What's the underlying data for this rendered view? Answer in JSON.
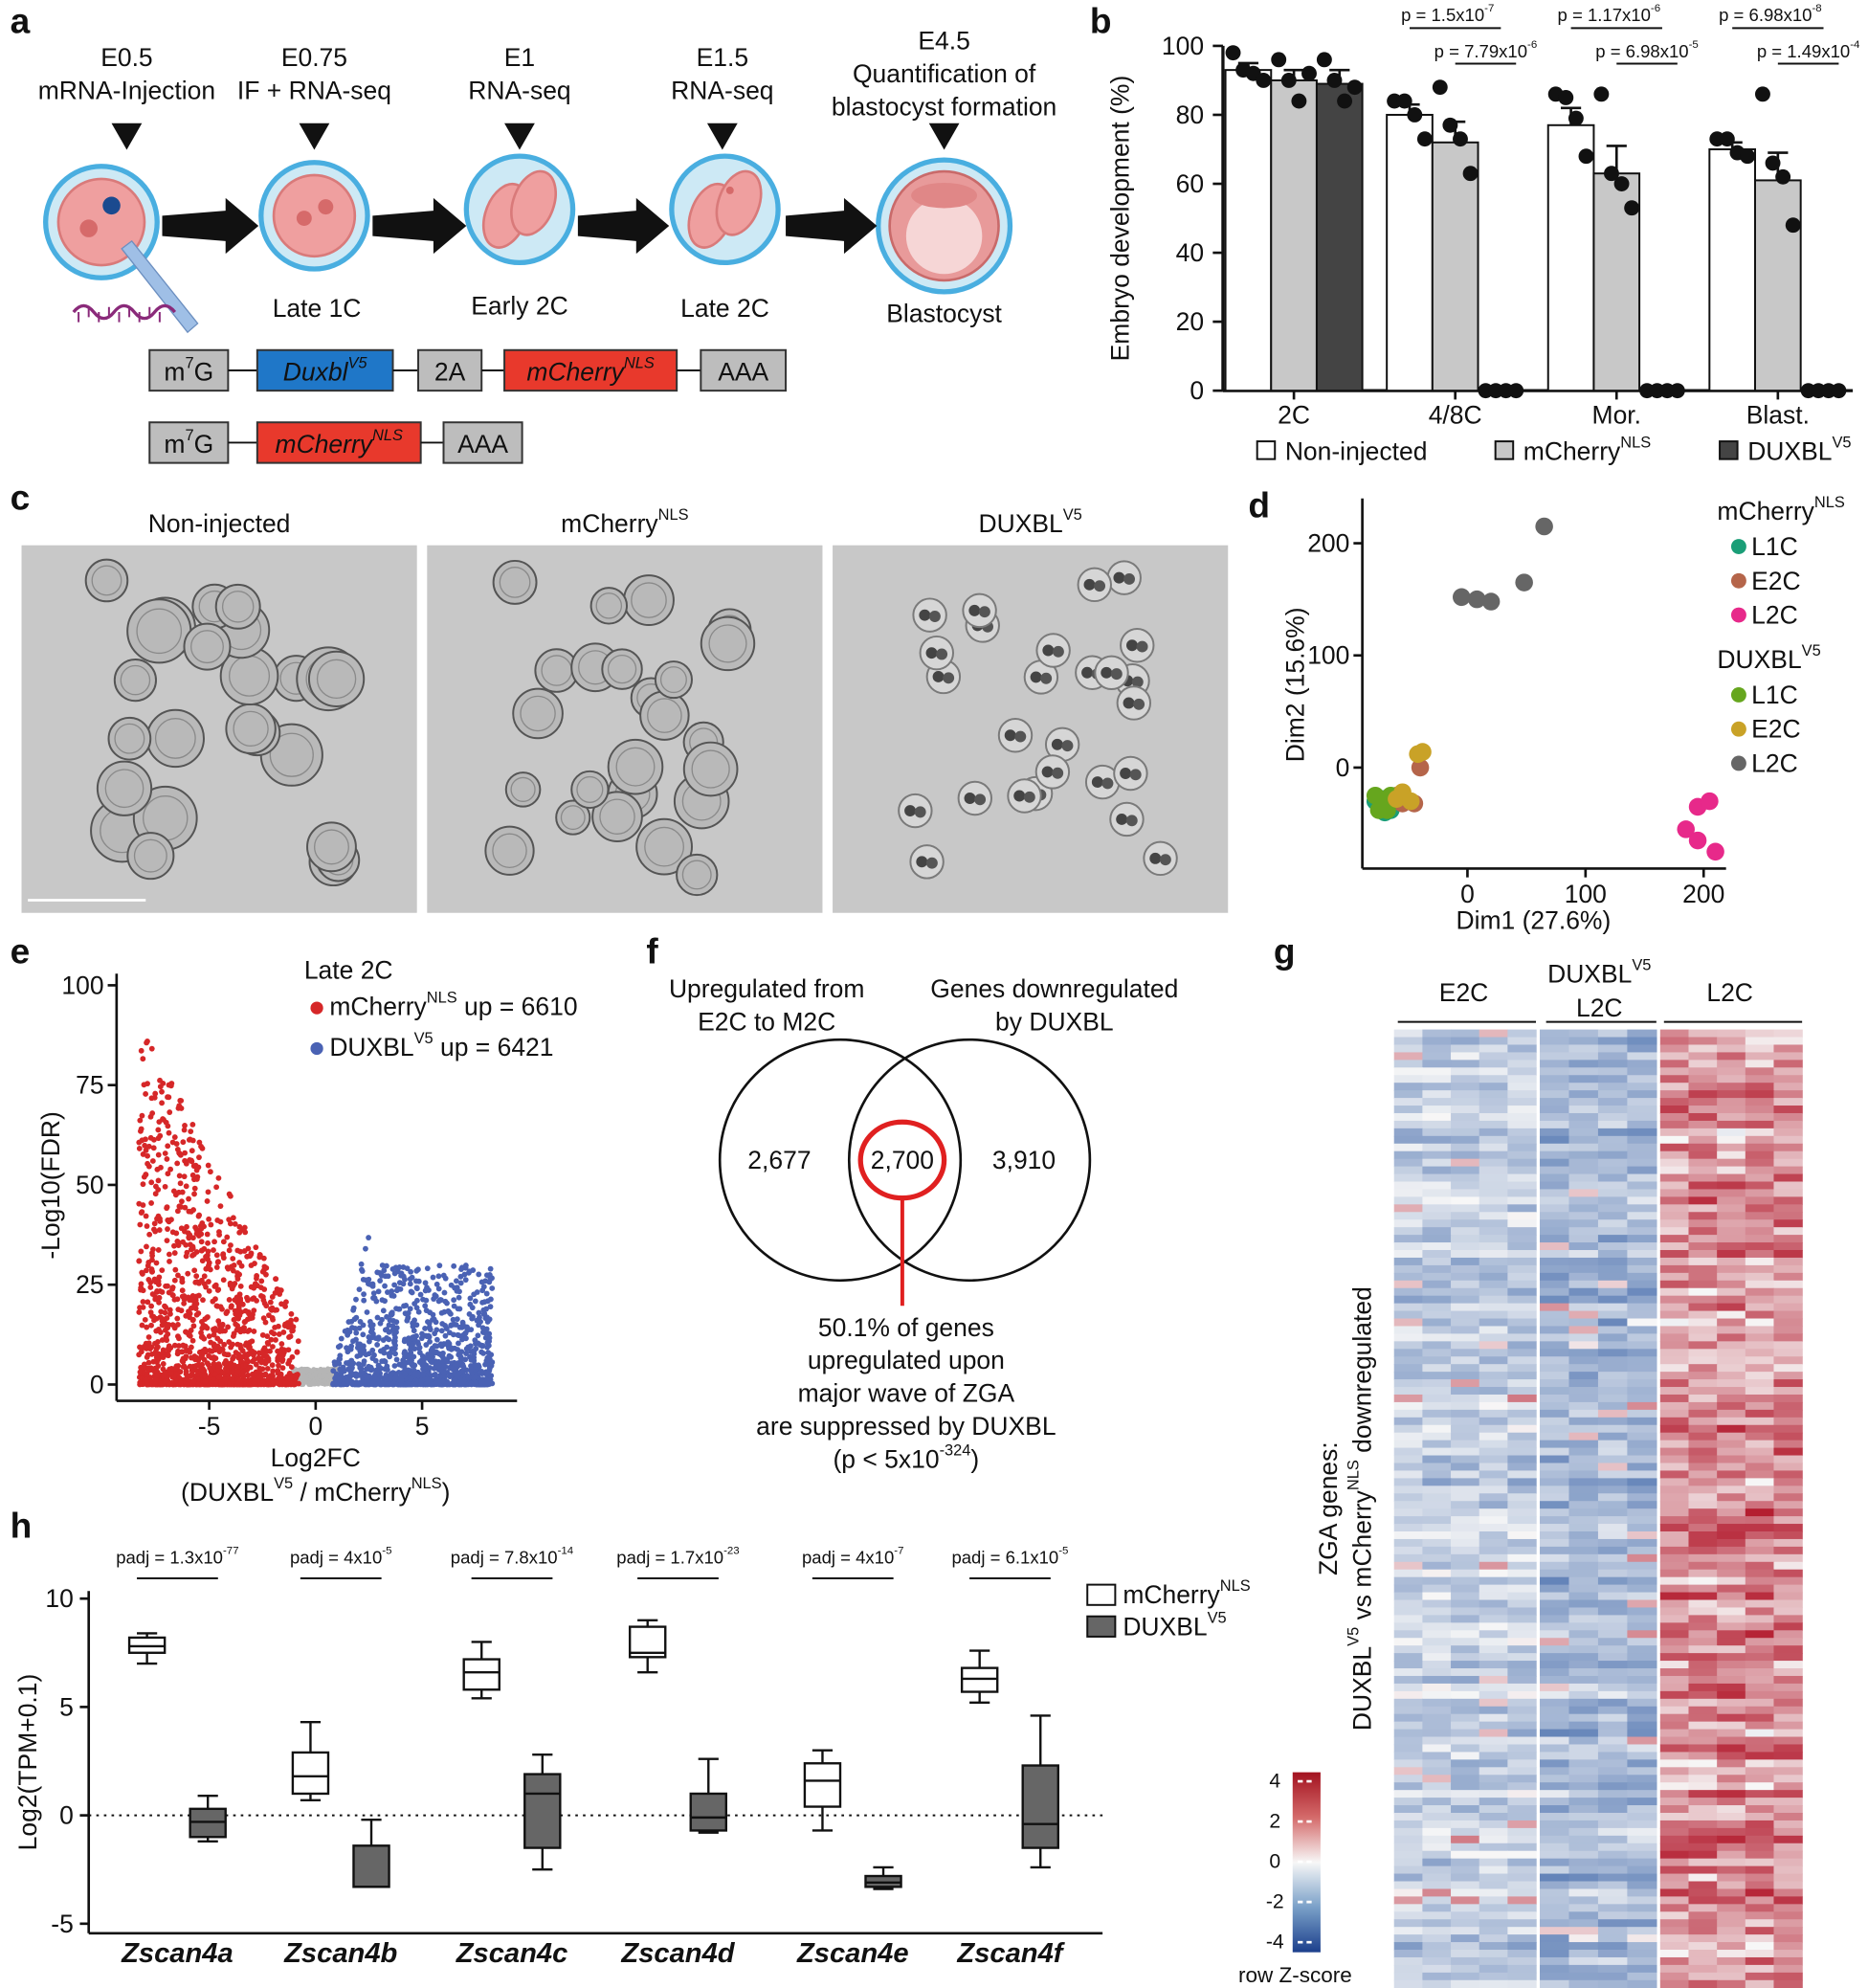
{
  "scheme": {
    "panel": "a",
    "stages": [
      {
        "lines": [
          "E0.5",
          "mRNA-Injection"
        ]
      },
      {
        "lines": [
          "E0.75",
          "IF + RNA-seq"
        ]
      },
      {
        "lines": [
          "E1",
          "RNA-seq"
        ]
      },
      {
        "lines": [
          "E1.5",
          "RNA-seq"
        ]
      },
      {
        "lines": [
          "E4.5",
          "Quantification of",
          "blastocyst formation"
        ]
      }
    ],
    "stage_names": [
      "Late 1C",
      "Early 2C",
      "Late 2C",
      "Blastocyst"
    ],
    "constructs": [
      [
        [
          "m",
          {
            "sup": "7"
          },
          "G"
        ],
        [
          "Duxbl",
          {
            "sup": "V5"
          }
        ],
        [
          "2A"
        ],
        [
          "mCherry",
          {
            "sup": "NLS"
          }
        ],
        [
          "AAA"
        ]
      ],
      [
        [
          "m",
          {
            "sup": "7"
          },
          "G"
        ],
        [
          "mCherry",
          {
            "sup": "NLS"
          }
        ],
        [
          "AAA"
        ]
      ]
    ]
  },
  "micrographs": {
    "panel": "c",
    "titles": [
      [
        "Non-injected"
      ],
      [
        "mCherry",
        {
          "sup": "NLS"
        }
      ],
      [
        "DUXBL",
        {
          "sup": "V5"
        }
      ]
    ]
  },
  "venn": {
    "panel": "f",
    "left_title": [
      "Upregulated from",
      "E2C to M2C"
    ],
    "right_title": [
      "Genes downregulated",
      "by DUXBL"
    ],
    "counts": [
      "2,677",
      "2,700",
      "3,910"
    ],
    "note": [
      [
        "50.1% of genes"
      ],
      [
        "upregulated upon"
      ],
      [
        "major wave of ZGA"
      ],
      [
        "are suppressed by DUXBL"
      ],
      [
        "(p < 5x10",
        {
          "sup": "-324"
        },
        ")"
      ]
    ]
  },
  "heatmap": {
    "panel": "g",
    "column_groups": [
      {
        "lines": [
          [
            "E2C"
          ]
        ]
      },
      {
        "lines": [
          [
            "DUXBL",
            {
              "sup": "V5"
            }
          ],
          [
            "L2C"
          ]
        ]
      },
      {
        "lines": [
          [
            "L2C"
          ]
        ]
      }
    ],
    "ylabel": [
      [
        "ZGA genes:"
      ],
      [
        "DUXBL",
        {
          "sup": "V5"
        },
        " vs mCherry",
        {
          "sup": "NLS"
        },
        " downregulated"
      ]
    ],
    "colorbar": {
      "label": "row Z-score",
      "ylim": [
        -4.5,
        4.45
      ],
      "yticks": [
        -4,
        -2,
        0,
        2,
        4
      ]
    }
  },
  "chart_data": [
    {
      "panel": "b",
      "type": "bar",
      "ylabel": "Embryo development (%)",
      "categories": [
        "2C",
        "4/8C",
        "Mor.",
        "Blast."
      ],
      "ylim": [
        0,
        100
      ],
      "yticks": [
        0,
        20,
        40,
        60,
        80,
        100
      ],
      "series": [
        {
          "name": [
            "Non-injected"
          ],
          "color": "#ffffff",
          "values": [
            93,
            80,
            77,
            70
          ],
          "errors": [
            2,
            3,
            5,
            2
          ],
          "points": [
            [
              98,
              93,
              92,
              90
            ],
            [
              84,
              84,
              80,
              73
            ],
            [
              86,
              85,
              79,
              68
            ],
            [
              73,
              73,
              69,
              68
            ]
          ]
        },
        {
          "name": [
            "mCherry",
            {
              "sup": "NLS"
            }
          ],
          "color": "#c8c8c8",
          "values": [
            90,
            72,
            63,
            61
          ],
          "errors": [
            3,
            6,
            8,
            8
          ],
          "points": [
            [
              96,
              90,
              84,
              92
            ],
            [
              88,
              77,
              73,
              63
            ],
            [
              86,
              63,
              60,
              53
            ],
            [
              86,
              66,
              62,
              48
            ]
          ]
        },
        {
          "name": [
            "DUXBL",
            {
              "sup": "V5"
            }
          ],
          "color": "#444444",
          "values": [
            89,
            0,
            0,
            0
          ],
          "errors": [
            4,
            0,
            0,
            0
          ],
          "points": [
            [
              96,
              90,
              84,
              88
            ],
            [
              0,
              0,
              0,
              0
            ],
            [
              0,
              0,
              0,
              0
            ],
            [
              0,
              0,
              0,
              0
            ]
          ]
        }
      ],
      "p_values": [
        null,
        [
          [
            "p = 1.5x10",
            {
              "sup": "-7"
            }
          ],
          [
            "p = 7.79x10",
            {
              "sup": "-6"
            }
          ]
        ],
        [
          [
            "p = 1.17x10",
            {
              "sup": "-6"
            }
          ],
          [
            "p = 6.98x10",
            {
              "sup": "-5"
            }
          ]
        ],
        [
          [
            "p = 6.98x10",
            {
              "sup": "-8"
            }
          ],
          [
            "p = 1.49x10",
            {
              "sup": "-4"
            }
          ]
        ]
      ]
    },
    {
      "panel": "d",
      "type": "scatter",
      "xlabel": "Dim1 (27.6%)",
      "ylabel": "Dim2 (15.6%)",
      "xlim": [
        -89,
        219
      ],
      "ylim": [
        -90,
        240
      ],
      "xticks": [
        0,
        100,
        200
      ],
      "yticks": [
        0,
        100,
        200
      ],
      "groups": [
        {
          "name": [
            "mCherry",
            {
              "sup": "NLS"
            }
          ],
          "series": [
            {
              "name": "L1C",
              "color": "#1a9e77",
              "x": [
                -75,
                -70,
                -65,
                -72,
                -78
              ],
              "y": [
                -35,
                -40,
                -38,
                -28,
                -30
              ]
            },
            {
              "name": "E2C",
              "color": "#b5654a",
              "x": [
                -55,
                -45,
                -40,
                -60,
                -62
              ],
              "y": [
                -32,
                -32,
                0,
                -25,
                -30
              ]
            },
            {
              "name": "L2C",
              "color": "#e7298a",
              "x": [
                185,
                195,
                205,
                195,
                210
              ],
              "y": [
                -55,
                -35,
                -30,
                -65,
                -75
              ]
            }
          ]
        },
        {
          "name": [
            "DUXBL",
            {
              "sup": "V5"
            }
          ],
          "series": [
            {
              "name": "L1C",
              "color": "#66a61e",
              "x": [
                -78,
                -70,
                -68,
                -75,
                -65
              ],
              "y": [
                -25,
                -32,
                -38,
                -38,
                -25
              ]
            },
            {
              "name": "E2C",
              "color": "#c9a227",
              "x": [
                -42,
                -38,
                -60,
                -55,
                -48
              ],
              "y": [
                12,
                14,
                -28,
                -22,
                -30
              ]
            },
            {
              "name": "L2C",
              "color": "#666666",
              "x": [
                -5,
                8,
                20,
                48,
                65
              ],
              "y": [
                152,
                150,
                148,
                165,
                215
              ]
            }
          ]
        }
      ]
    },
    {
      "panel": "e",
      "type": "volcano",
      "title": "Late 2C",
      "xlabel": "Log2FC",
      "xlabel_sub": [
        "(DUXBL",
        {
          "sup": "V5"
        },
        " / mCherry",
        {
          "sup": "NLS"
        },
        ")"
      ],
      "ylabel": "-Log10(FDR)",
      "xlim": [
        -9.35,
        9.46
      ],
      "ylim": [
        -4.1,
        102.9
      ],
      "xticks": [
        -5,
        0,
        5
      ],
      "yticks": [
        0,
        25,
        50,
        75,
        100
      ],
      "series": [
        {
          "name": [
            "mCherry",
            {
              "sup": "NLS"
            },
            " up = 6610"
          ],
          "color": "#d62728"
        },
        {
          "name": [
            "DUXBL",
            {
              "sup": "V5"
            },
            " up = 6421"
          ],
          "color": "#4a62b4"
        }
      ]
    },
    {
      "panel": "h",
      "type": "box",
      "ylabel": "Log2(TPM+0.1)",
      "categories": [
        "Zscan4a",
        "Zscan4b",
        "Zscan4c",
        "Zscan4d",
        "Zscan4e",
        "Zscan4f"
      ],
      "ylim": [
        -5.44,
        10.35
      ],
      "yticks": [
        -5,
        0,
        5,
        10
      ],
      "hline": 0,
      "padj": [
        [
          "padj = 1.3x10",
          {
            "sup": "-77"
          }
        ],
        [
          "padj = 4x10",
          {
            "sup": "-5"
          }
        ],
        [
          "padj = 7.8x10",
          {
            "sup": "-14"
          }
        ],
        [
          "padj = 1.7x10",
          {
            "sup": "-23"
          }
        ],
        [
          "padj = 4x10",
          {
            "sup": "-7"
          }
        ],
        [
          "padj = 6.1x10",
          {
            "sup": "-5"
          }
        ]
      ],
      "series": [
        {
          "name": [
            "mCherry",
            {
              "sup": "NLS"
            }
          ],
          "color": "#ffffff",
          "stats": [
            [
              7.0,
              7.5,
              7.8,
              8.2,
              8.4
            ],
            [
              0.7,
              1.0,
              1.8,
              2.9,
              4.3
            ],
            [
              5.4,
              5.8,
              6.6,
              7.2,
              8.0
            ],
            [
              6.6,
              7.3,
              7.5,
              8.7,
              9.0
            ],
            [
              -0.7,
              0.4,
              1.6,
              2.4,
              3.0
            ],
            [
              5.2,
              5.7,
              6.3,
              6.8,
              7.6
            ]
          ]
        },
        {
          "name": [
            "DUXBL",
            {
              "sup": "V5"
            }
          ],
          "color": "#666666",
          "stats": [
            [
              -1.2,
              -1.0,
              -0.3,
              0.3,
              0.9
            ],
            [
              -3.3,
              -3.3,
              -3.3,
              -1.4,
              -0.2
            ],
            [
              -2.5,
              -1.5,
              1.0,
              1.9,
              2.8
            ],
            [
              -0.8,
              -0.7,
              -0.1,
              1.0,
              2.6
            ],
            [
              -3.4,
              -3.3,
              -3.1,
              -2.8,
              -2.4
            ],
            [
              -2.4,
              -1.5,
              -0.4,
              2.3,
              4.6
            ]
          ]
        }
      ]
    }
  ]
}
